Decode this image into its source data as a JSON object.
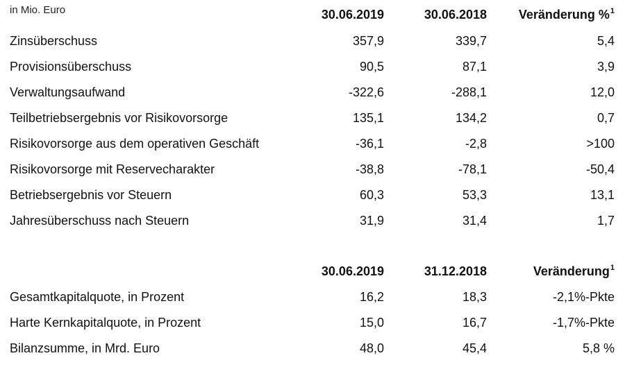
{
  "unit_note": "in Mio. Euro",
  "table1": {
    "headers": [
      "30.06.2019",
      "30.06.2018",
      "Veränderung %"
    ],
    "header_footnote": "1",
    "rows": [
      {
        "label": "Zinsüberschuss",
        "v1": "357,9",
        "v2": "339,7",
        "v3": "5,4"
      },
      {
        "label": "Provisionsüberschuss",
        "v1": "90,5",
        "v2": "87,1",
        "v3": "3,9"
      },
      {
        "label": "Verwaltungsaufwand",
        "v1": "-322,6",
        "v2": "-288,1",
        "v3": "12,0"
      },
      {
        "label": "Teilbetriebsergebnis vor Risikovorsorge",
        "v1": "135,1",
        "v2": "134,2",
        "v3": "0,7"
      },
      {
        "label": "Risikovorsorge aus dem operativen Geschäft",
        "v1": "-36,1",
        "v2": "-2,8",
        "v3": ">100"
      },
      {
        "label": "Risikovorsorge mit Reservecharakter",
        "v1": "-38,8",
        "v2": "-78,1",
        "v3": "-50,4"
      },
      {
        "label": "Betriebsergebnis vor Steuern",
        "v1": "60,3",
        "v2": "53,3",
        "v3": "13,1"
      },
      {
        "label": "Jahresüberschuss nach Steuern",
        "v1": "31,9",
        "v2": "31,4",
        "v3": "1,7"
      }
    ]
  },
  "table2": {
    "headers": [
      "30.06.2019",
      "31.12.2018",
      "Veränderung"
    ],
    "header_footnote": "1",
    "rows": [
      {
        "label": "Gesamtkapitalquote, in Prozent",
        "v1": "16,2",
        "v2": "18,3",
        "v3": "-2,1%-Pkte"
      },
      {
        "label": "Harte Kernkapitalquote, in Prozent",
        "v1": "15,0",
        "v2": "16,7",
        "v3": "-1,7%-Pkte"
      },
      {
        "label": "Bilanzsumme, in Mrd. Euro",
        "v1": "48,0",
        "v2": "45,4",
        "v3": "5,8 %"
      }
    ]
  }
}
